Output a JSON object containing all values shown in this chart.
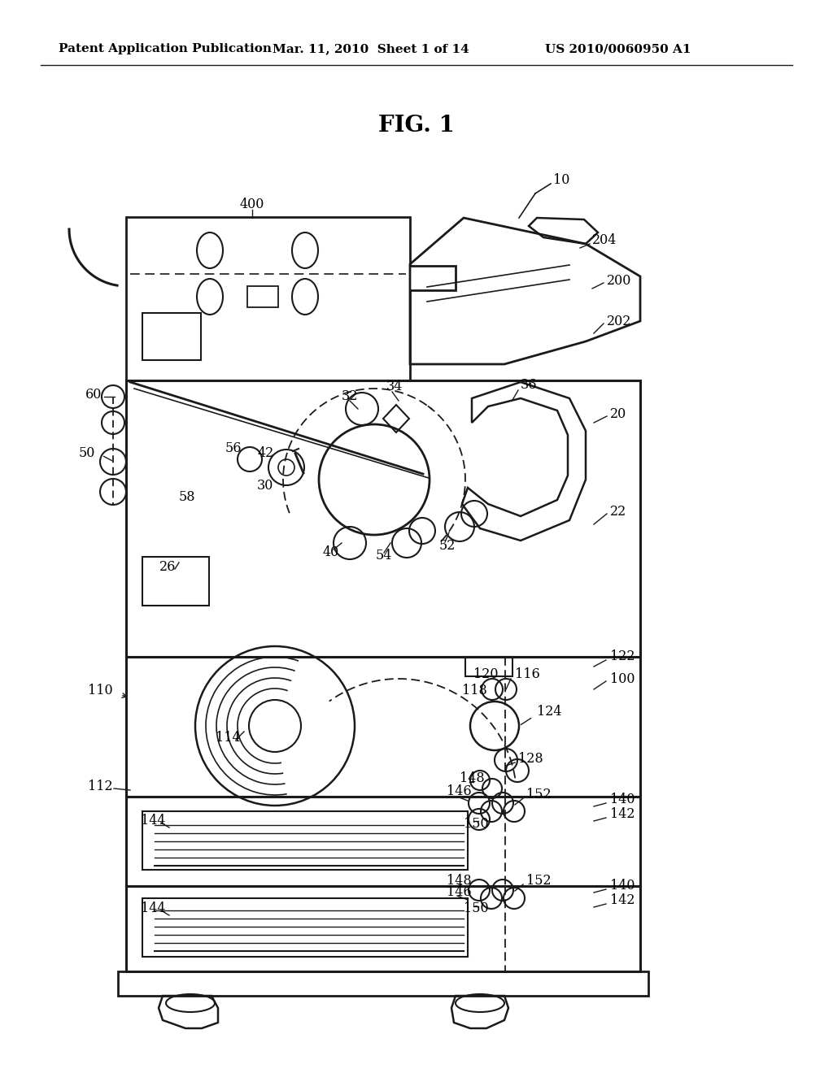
{
  "title": "FIG. 1",
  "header_left": "Patent Application Publication",
  "header_mid": "Mar. 11, 2010  Sheet 1 of 14",
  "header_right": "US 2010/0060950 A1",
  "bg_color": "#ffffff",
  "text_color": "#000000",
  "fig_width": 10.24,
  "fig_height": 13.2,
  "dpi": 100
}
